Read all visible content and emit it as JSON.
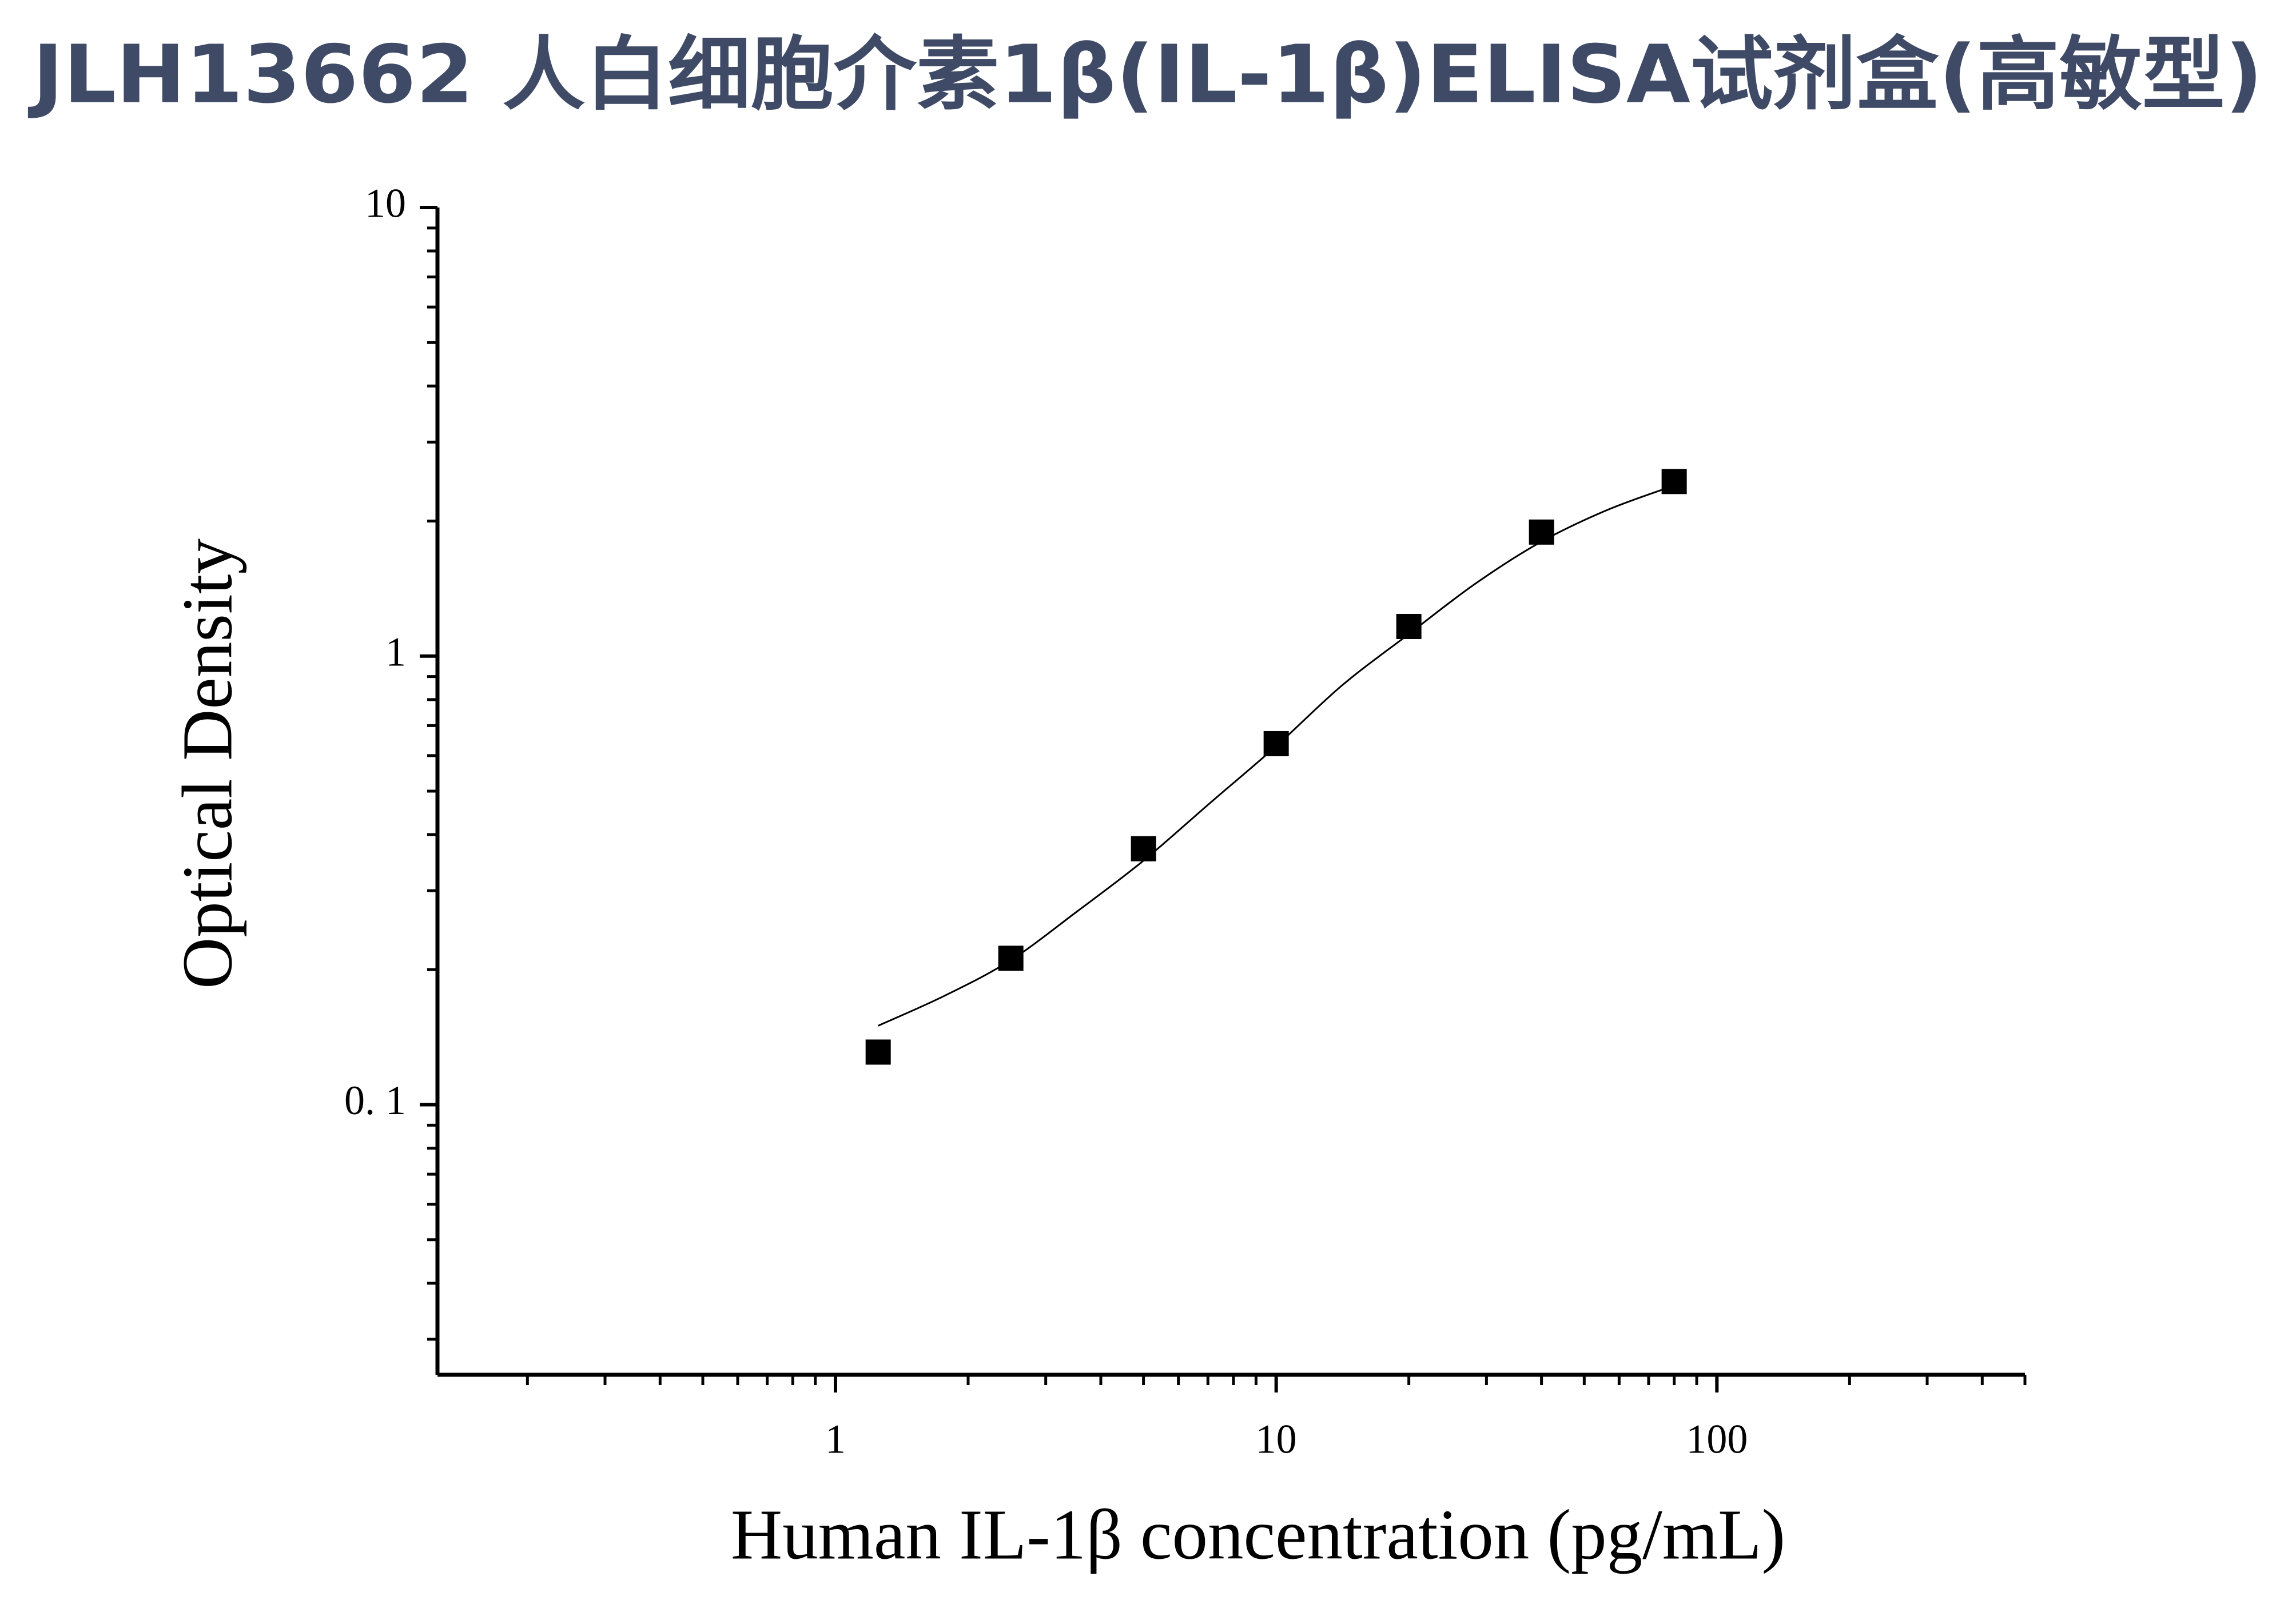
{
  "chart_data": {
    "type": "scatter",
    "title": "JLH13662 人白细胞介素1β(IL-1β)ELISA试剂盒(高敏型)",
    "x_label": "Human IL-1β concentration (pg/mL)",
    "y_label": "Optical Density",
    "x": [
      1.25,
      2.5,
      5,
      10,
      20,
      40,
      80
    ],
    "values": [
      0.131,
      0.212,
      0.372,
      0.638,
      1.164,
      1.89,
      2.45
    ],
    "color": "#000000",
    "curve": {
      "x": [
        1.25,
        1.77,
        2.5,
        3.54,
        5,
        7.07,
        10,
        14.1,
        20,
        28.3,
        40,
        56.6,
        80
      ],
      "values": [
        0.15,
        0.175,
        0.21,
        0.27,
        0.35,
        0.47,
        0.63,
        0.86,
        1.12,
        1.45,
        1.8,
        2.12,
        2.4
      ]
    },
    "xscale": "log",
    "yscale": "log",
    "xlim": [
      0.125,
      500
    ],
    "ylim": [
      0.025,
      10
    ],
    "xticks": [
      1,
      10,
      100
    ],
    "yticks": [
      {
        "value": 0.1,
        "label": "0. 1"
      },
      1,
      10
    ],
    "xminor": [
      0.2,
      0.3,
      0.4,
      0.5,
      0.6,
      0.7,
      0.8,
      0.9,
      2,
      3,
      4,
      5,
      6,
      7,
      8,
      9,
      20,
      30,
      40,
      50,
      60,
      70,
      80,
      90,
      200,
      300,
      400,
      500
    ],
    "yminor": [
      0.03,
      0.04,
      0.05,
      0.06,
      0.07,
      0.08,
      0.09,
      0.2,
      0.3,
      0.4,
      0.5,
      0.6,
      0.7,
      0.8,
      0.9,
      2,
      3,
      4,
      5,
      6,
      7,
      8,
      9
    ],
    "grid": false
  }
}
